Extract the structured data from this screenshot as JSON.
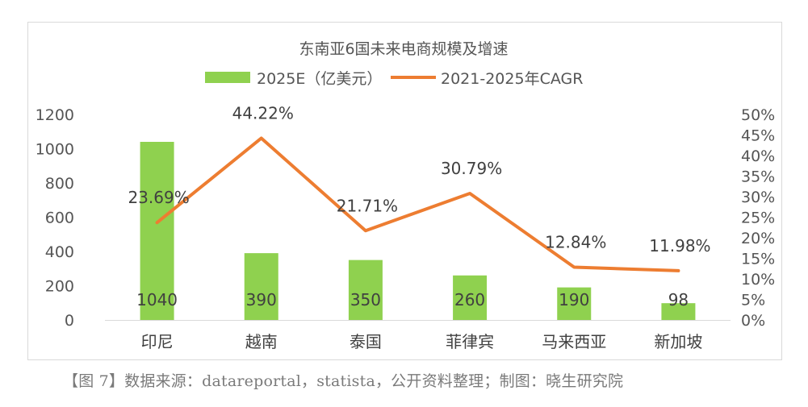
{
  "chart_data": {
    "type": "bar+line",
    "title": "东南亚6国未来电商规模及增速",
    "categories": [
      "印尼",
      "越南",
      "泰国",
      "菲律宾",
      "马来西亚",
      "新加坡"
    ],
    "series": [
      {
        "name": "2025E（亿美元）",
        "type": "bar",
        "axis": "left",
        "color": "#8fd14f",
        "values": [
          1040,
          390,
          350,
          260,
          190,
          98
        ],
        "labels": [
          "1040",
          "390",
          "350",
          "260",
          "190",
          "98"
        ]
      },
      {
        "name": "2021-2025年CAGR",
        "type": "line",
        "axis": "right",
        "color": "#ed7d31",
        "values": [
          23.69,
          44.22,
          21.71,
          30.79,
          12.84,
          11.98
        ],
        "labels": [
          "23.69%",
          "44.22%",
          "21.71%",
          "30.79%",
          "12.84%",
          "11.98%"
        ]
      }
    ],
    "y_left": {
      "min": 0,
      "max": 1200,
      "ticks": [
        "0",
        "200",
        "400",
        "600",
        "800",
        "1000",
        "1200"
      ]
    },
    "y_right": {
      "min": 0,
      "max": 50,
      "ticks": [
        "0%",
        "5%",
        "10%",
        "15%",
        "20%",
        "25%",
        "30%",
        "35%",
        "40%",
        "45%",
        "50%"
      ]
    },
    "legend_position": "top-center",
    "grid": false
  },
  "caption": "【图 7】数据来源：datareportal，statista，公开资料整理；制图：晓生研究院"
}
